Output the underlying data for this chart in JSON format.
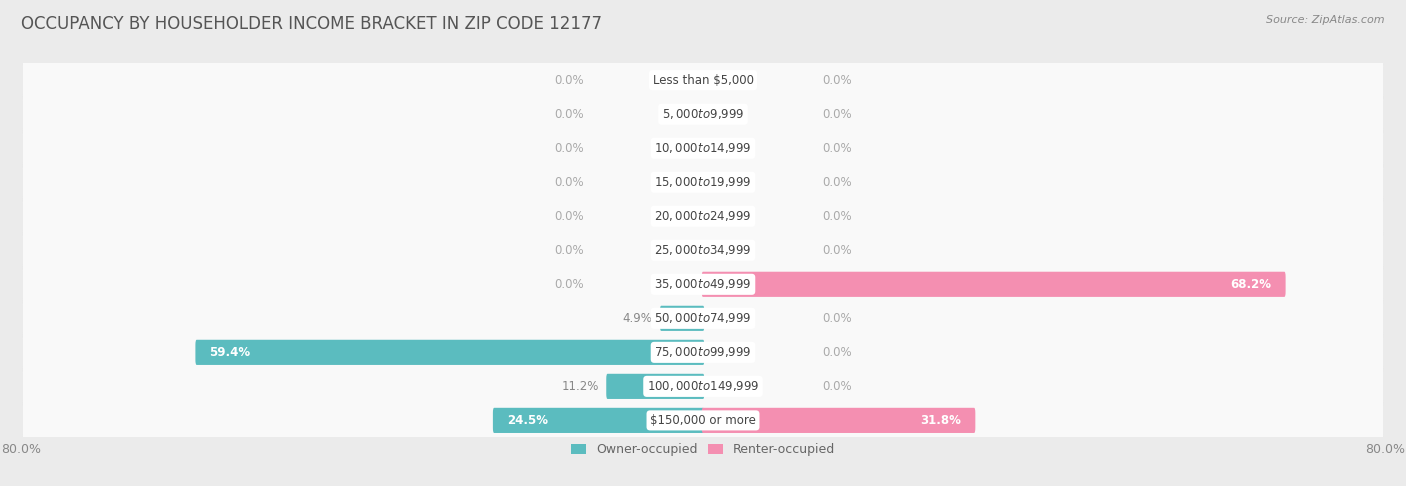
{
  "title": "OCCUPANCY BY HOUSEHOLDER INCOME BRACKET IN ZIP CODE 12177",
  "source": "Source: ZipAtlas.com",
  "categories": [
    "Less than $5,000",
    "$5,000 to $9,999",
    "$10,000 to $14,999",
    "$15,000 to $19,999",
    "$20,000 to $24,999",
    "$25,000 to $34,999",
    "$35,000 to $49,999",
    "$50,000 to $74,999",
    "$75,000 to $99,999",
    "$100,000 to $149,999",
    "$150,000 or more"
  ],
  "owner_values": [
    0.0,
    0.0,
    0.0,
    0.0,
    0.0,
    0.0,
    0.0,
    4.9,
    59.4,
    11.2,
    24.5
  ],
  "renter_values": [
    0.0,
    0.0,
    0.0,
    0.0,
    0.0,
    0.0,
    68.2,
    0.0,
    0.0,
    0.0,
    31.8
  ],
  "owner_color": "#5bbcbf",
  "renter_color": "#f48fb1",
  "background_color": "#ebebeb",
  "row_background": "#f9f9f9",
  "row_shadow": "#e0e0e0",
  "xlim": 80.0,
  "label_fontsize": 8.5,
  "category_fontsize": 8.5,
  "title_fontsize": 12,
  "legend_fontsize": 9,
  "axis_label_fontsize": 9
}
